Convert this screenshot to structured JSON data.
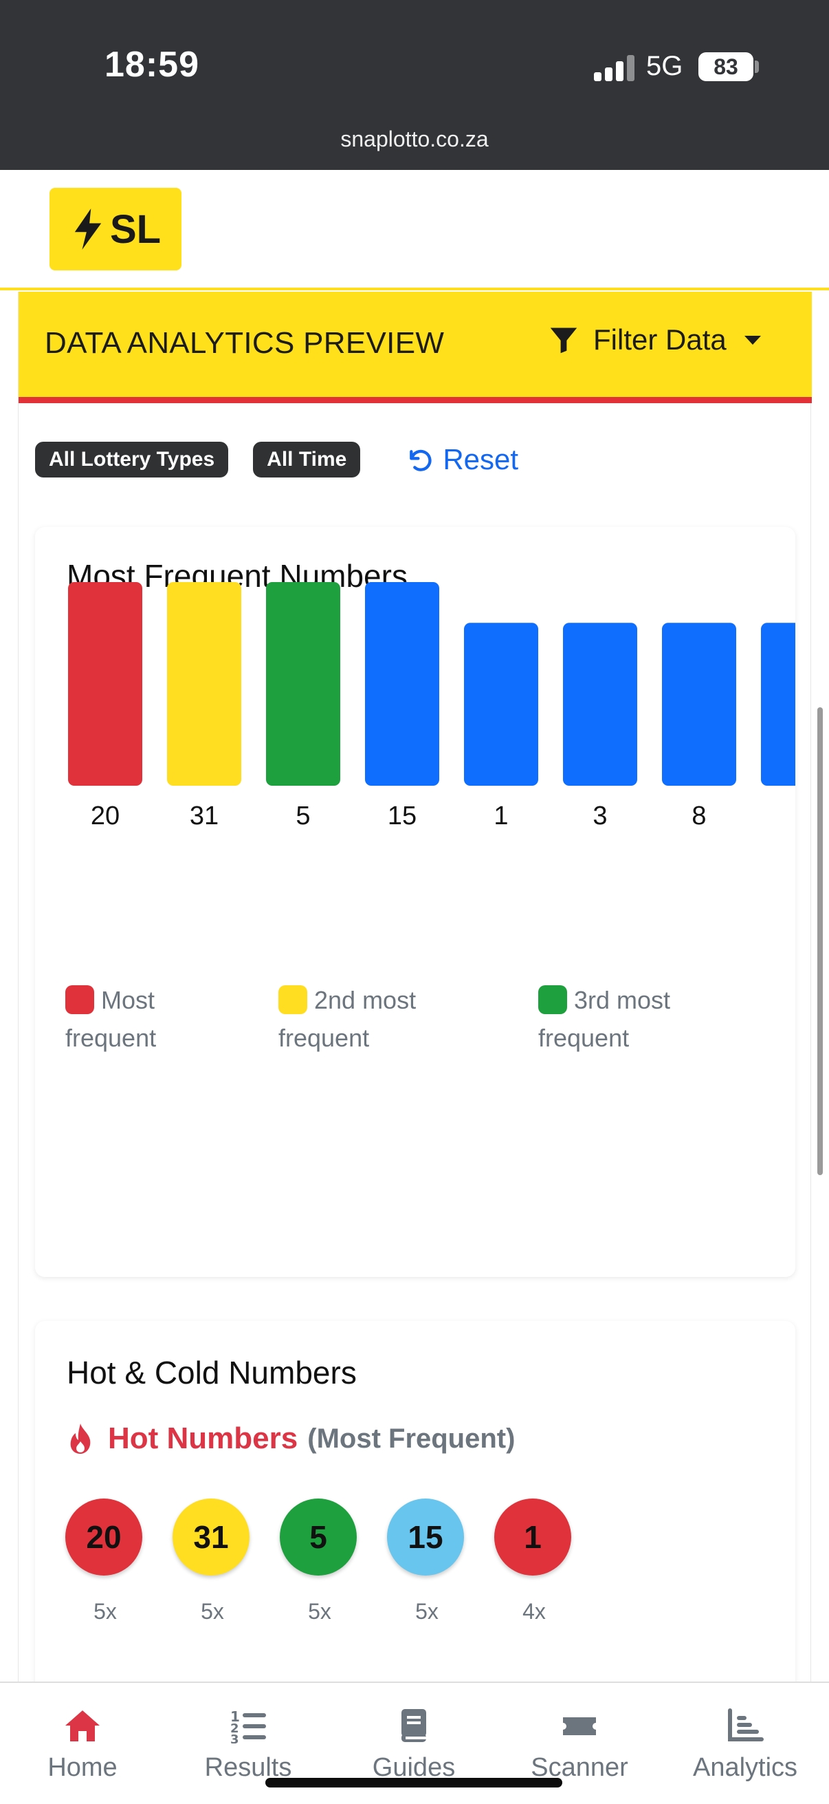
{
  "status_bar": {
    "time": "18:59",
    "network": "5G",
    "battery": "83"
  },
  "browser": {
    "url": "snaplotto.co.za"
  },
  "logo": {
    "text": "SL"
  },
  "analytics": {
    "title": "DATA ANALYTICS PREVIEW",
    "filter_label": "Filter Data",
    "chips": [
      "All Lottery Types",
      "All Time"
    ],
    "reset_label": "Reset"
  },
  "chart_card": {
    "title": "Most Frequent Numbers",
    "legend": [
      {
        "line1": "Most",
        "line2": "frequent",
        "color": "#e0323a"
      },
      {
        "line1": "2nd most",
        "line2": "frequent",
        "color": "#ffde21"
      },
      {
        "line1": "3rd most",
        "line2": "frequent",
        "color": "#1fa03e"
      }
    ]
  },
  "chart_data": {
    "type": "bar",
    "title": "Most Frequent Numbers",
    "categories": [
      "20",
      "31",
      "5",
      "15",
      "1",
      "3",
      "8",
      ""
    ],
    "values": [
      5,
      5,
      5,
      5,
      4,
      4,
      4,
      4
    ],
    "colors": [
      "#e0323a",
      "#ffde21",
      "#1fa03e",
      "#0f6efd",
      "#0f6efd",
      "#0f6efd",
      "#0f6efd",
      "#0f6efd"
    ],
    "ylim": [
      0,
      5
    ],
    "xlabel": "",
    "ylabel": "",
    "grid": false,
    "legend_position": "bottom"
  },
  "hot_cold": {
    "title": "Hot & Cold Numbers",
    "hot_label": "Hot Numbers",
    "hot_note": "(Most Frequent)",
    "hot_numbers": [
      {
        "number": "20",
        "count": "5x",
        "color": "#e0323a"
      },
      {
        "number": "31",
        "count": "5x",
        "color": "#ffde21"
      },
      {
        "number": "5",
        "count": "5x",
        "color": "#1fa03e"
      },
      {
        "number": "15",
        "count": "5x",
        "color": "#67c5ee"
      },
      {
        "number": "1",
        "count": "4x",
        "color": "#e0323a"
      }
    ]
  },
  "bottom_nav": {
    "items": [
      {
        "label": "Home",
        "icon": "home-icon",
        "active": true
      },
      {
        "label": "Results",
        "icon": "list-ordered-icon",
        "active": false
      },
      {
        "label": "Guides",
        "icon": "book-icon",
        "active": false
      },
      {
        "label": "Scanner",
        "icon": "ticket-icon",
        "active": false
      },
      {
        "label": "Analytics",
        "icon": "bar-chart-icon",
        "active": false
      }
    ]
  },
  "colors": {
    "accent": "#ffe01b",
    "danger": "#dc3545",
    "link": "#1468f0",
    "muted": "#6c757d"
  }
}
